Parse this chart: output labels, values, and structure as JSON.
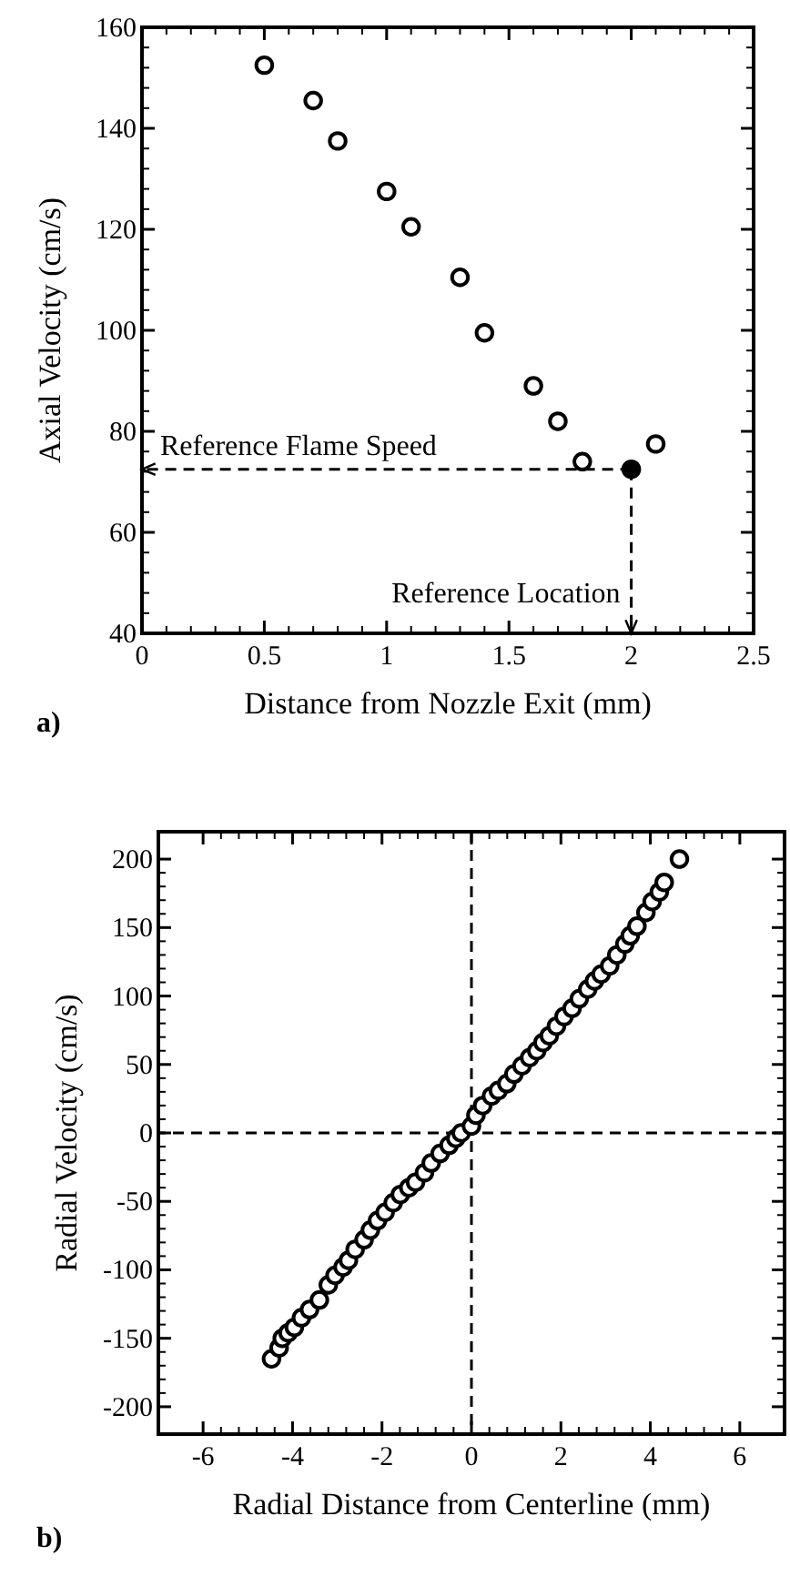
{
  "chart_data": [
    {
      "type": "scatter",
      "xlabel": "Distance from Nozzle Exit (mm)",
      "ylabel": "Axial Velocity (cm/s)",
      "xlim": [
        0,
        2.5
      ],
      "ylim": [
        40,
        160
      ],
      "xticks": [
        0,
        0.5,
        1,
        1.5,
        2,
        2.5
      ],
      "yticks": [
        40,
        60,
        80,
        100,
        120,
        140,
        160
      ],
      "marker": "circle",
      "grid": false,
      "series": [
        {
          "color": "#000000",
          "x": [
            0.5,
            0.7,
            0.8,
            1.0,
            1.1,
            1.3,
            1.4,
            1.6,
            1.7,
            1.8,
            2.1
          ],
          "values": [
            152.5,
            145.5,
            137.5,
            127.5,
            120.5,
            110.5,
            99.5,
            89,
            82,
            74,
            77.5
          ]
        },
        {
          "color": "#000000",
          "x": [
            2.0
          ],
          "values": [
            72.5
          ]
        }
      ],
      "ref_lines": [
        {
          "axis": "y",
          "value": 72.5,
          "label": "Reference Flame Speed",
          "line_style": "dashed"
        },
        {
          "axis": "x",
          "value": 2,
          "label": "Reference Location",
          "line_style": "dashed"
        }
      ],
      "annotations": [
        "a)"
      ]
    },
    {
      "type": "scatter",
      "xlabel": "Radial Distance from Centerline (mm)",
      "ylabel": "Radial Velocity (cm/s)",
      "xlim": [
        -7,
        7
      ],
      "ylim": [
        -220,
        220
      ],
      "xticks": [
        -6,
        -4,
        -2,
        0,
        2,
        4,
        6
      ],
      "yticks": [
        -200,
        -150,
        -100,
        -50,
        0,
        50,
        100,
        150,
        200
      ],
      "marker": "circle",
      "grid": false,
      "series": [
        {
          "color": "#000000",
          "x": [
            -4.47,
            -4.3,
            -4.23,
            -4.1,
            -3.96,
            -3.8,
            -3.62,
            -3.4,
            -3.2,
            -3.05,
            -2.87,
            -2.75,
            -2.6,
            -2.4,
            -2.26,
            -2.1,
            -1.93,
            -1.75,
            -1.59,
            -1.4,
            -1.25,
            -1.05,
            -0.9,
            -0.7,
            -0.5,
            -0.35,
            -0.23,
            0.0,
            0.1,
            0.25,
            0.45,
            0.6,
            0.79,
            0.95,
            1.13,
            1.3,
            1.46,
            1.6,
            1.74,
            1.9,
            2.07,
            2.25,
            2.41,
            2.6,
            2.75,
            2.9,
            3.09,
            3.25,
            3.43,
            3.55,
            3.7,
            3.9,
            4.04,
            4.2,
            4.31,
            4.65
          ],
          "values": [
            -165,
            -157,
            -150,
            -146,
            -142,
            -135,
            -129,
            -122,
            -111,
            -104,
            -98,
            -93,
            -85,
            -78,
            -71,
            -64,
            -58,
            -51,
            -45,
            -40,
            -36,
            -29,
            -22,
            -15,
            -9,
            -4,
            0,
            5,
            13,
            20,
            27,
            31,
            36,
            43,
            49,
            55,
            60,
            66,
            71,
            78,
            85,
            91,
            98,
            105,
            111,
            116,
            122,
            130,
            138,
            144,
            151,
            161,
            169,
            176,
            183,
            200
          ]
        }
      ],
      "ref_lines": [
        {
          "axis": "x",
          "value": 0,
          "line_style": "dashed"
        },
        {
          "axis": "y",
          "value": 0,
          "line_style": "dashed"
        }
      ],
      "annotations": [
        "b)"
      ]
    }
  ]
}
